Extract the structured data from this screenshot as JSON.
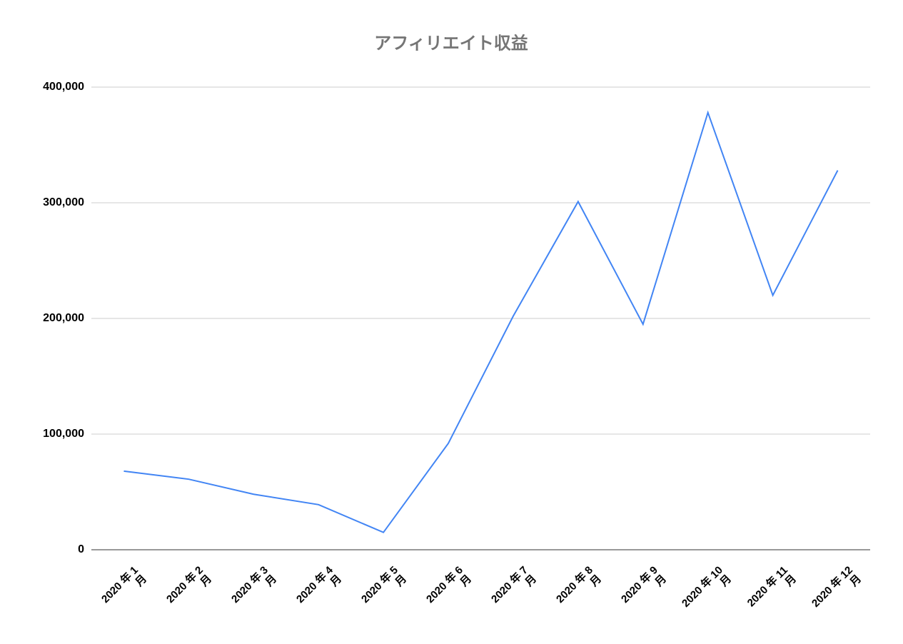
{
  "chart_data": {
    "type": "line",
    "title": "アフィリエイト収益",
    "categories": [
      "2020 年 1 月",
      "2020 年 2 月",
      "2020 年 3 月",
      "2020 年 4 月",
      "2020 年 5 月",
      "2020 年 6 月",
      "2020 年 7 月",
      "2020 年 8 月",
      "2020 年 9 月",
      "2020 年 10 月",
      "2020 年 11 月",
      "2020 年 12 月"
    ],
    "series": [
      {
        "name": "アフィリエイト収益",
        "color": "#4285f4",
        "values": [
          68000,
          61000,
          48000,
          39000,
          15000,
          92000,
          202000,
          301000,
          195000,
          378000,
          220000,
          328000
        ]
      }
    ],
    "ylim": [
      0,
      400000
    ],
    "yticks": [
      0,
      {
        "value": 100000,
        "label": "100,000"
      },
      {
        "value": 200000,
        "label": "200,000"
      },
      {
        "value": 300000,
        "label": "300,000"
      },
      {
        "value": 400000,
        "label": "400,000"
      }
    ],
    "grid": true
  }
}
